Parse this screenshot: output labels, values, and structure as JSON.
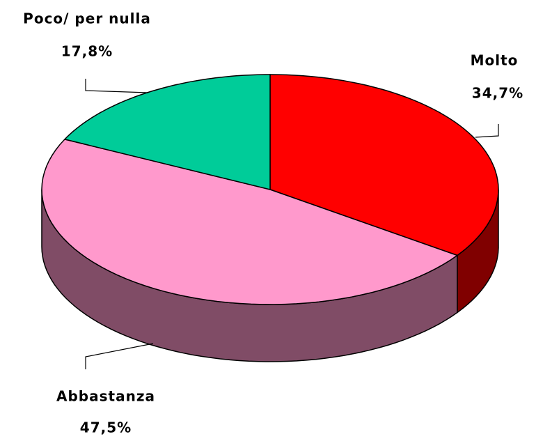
{
  "chart_data": {
    "type": "pie3d",
    "categories": [
      "Molto",
      "Abbastanza",
      "Poco/ per nulla"
    ],
    "values": [
      34.7,
      47.5,
      17.8
    ],
    "value_labels": [
      "34,7%",
      "47,5%",
      "17,8%"
    ],
    "colors": [
      "#ff0000",
      "#ff99cc",
      "#00cc99"
    ],
    "side_colors": [
      "#800000",
      "#804c66",
      "#00664c"
    ]
  }
}
